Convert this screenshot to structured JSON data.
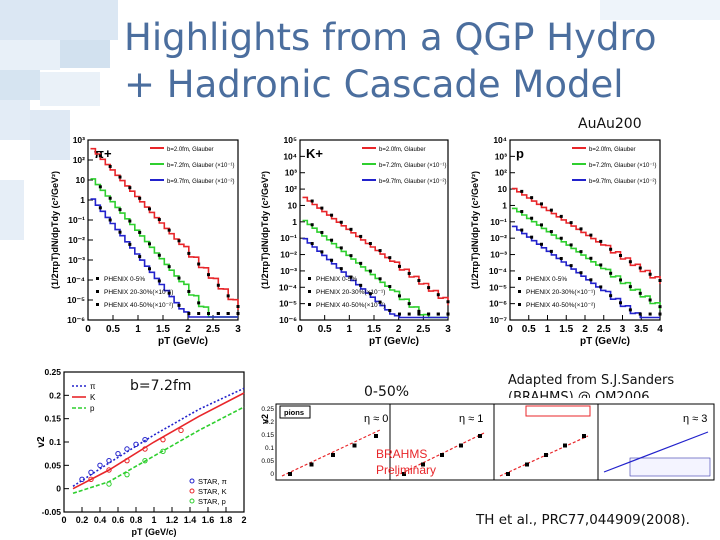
{
  "slide": {
    "title_line1": "Highlights from a QGP Hydro",
    "title_line2": "+ Hadronic Cascade Model",
    "system": "AuAu200",
    "impact_label": "b=7.2fm",
    "centrality_label": "0-50%",
    "adapted_line1": "Adapted from S.J.Sanders",
    "adapted_line2": "(BRAHMS) @ QM2006",
    "citation": "TH et al., PRC77,044909(2008).",
    "colors": {
      "title": "#4b6e9e",
      "red": "#e8262a",
      "green": "#2fcf2f",
      "blue": "#2222cc"
    }
  },
  "chart_data": [
    {
      "type": "line",
      "particle": "π+",
      "xlabel": "pT (GeV/c)",
      "ylabel": "(1/2πpT)dN/dpTdy (c²/GeV²)",
      "xlim": [
        0,
        3
      ],
      "ylog_range": [
        -6,
        3
      ],
      "xticks": [
        "0",
        "0.5",
        "1",
        "1.5",
        "2",
        "2.5",
        "3"
      ],
      "yticks": [
        "10⁻⁶",
        "10⁻⁵",
        "10⁻⁴",
        "10⁻³",
        "10⁻²",
        "10⁻¹",
        "1",
        "10",
        "10²",
        "10³"
      ],
      "model_legend": [
        "b=2.0fm, Glauber",
        "b=7.2fm, Glauber (×10⁻¹)",
        "b=9.7fm, Glauber (×10⁻²)"
      ],
      "data_legend": [
        "PHENIX 0-5%",
        "PHENIX 20-30%(×10⁻¹)",
        "PHENIX 40-50%(×10⁻²)"
      ],
      "series": [
        {
          "name": "b=2.0fm",
          "color": "red",
          "start": 2.7,
          "slope": 2.7
        },
        {
          "name": "b=7.2fm",
          "color": "green",
          "start": 1.2,
          "slope": 2.9
        },
        {
          "name": "b=9.7fm",
          "color": "blue",
          "start": 0.2,
          "slope": 3.1
        }
      ]
    },
    {
      "type": "line",
      "particle": "K+",
      "xlabel": "pT (GeV/c)",
      "ylabel": "(1/2πpT)dN/dpTdy (c²/GeV²)",
      "xlim": [
        0,
        3
      ],
      "ylog_range": [
        -6,
        5
      ],
      "xticks": [
        "0",
        "0.5",
        "1",
        "1.5",
        "2",
        "2.5",
        "3"
      ],
      "yticks": [
        "10⁻⁶",
        "10⁻⁵",
        "10⁻⁴",
        "10⁻³",
        "10⁻²",
        "10⁻¹",
        "1",
        "10",
        "10²",
        "10³",
        "10⁴",
        "10⁵"
      ],
      "model_legend": [
        "b=2.0fm, Glauber",
        "b=7.2fm, Glauber (×10⁻¹)",
        "b=9.7fm, Glauber (×10⁻²)"
      ],
      "data_legend": [
        "PHENIX 0-5%",
        "PHENIX 20-30%(×10⁻¹)",
        "PHENIX 40-50%(×10⁻²)"
      ],
      "series": [
        {
          "name": "b=2.0fm",
          "color": "red",
          "start": 1.6,
          "slope": 2.2
        },
        {
          "name": "b=7.2fm",
          "color": "green",
          "start": 0.2,
          "slope": 2.4
        },
        {
          "name": "b=9.7fm",
          "color": "blue",
          "start": -0.9,
          "slope": 2.6
        }
      ]
    },
    {
      "type": "line",
      "particle": "p",
      "xlabel": "pT (GeV/c)",
      "ylabel": "(1/2πpT)dN/dpTdy (c²/GeV²)",
      "xlim": [
        0,
        4
      ],
      "ylog_range": [
        -7,
        4
      ],
      "xticks": [
        "0",
        "0.5",
        "1",
        "1.5",
        "2",
        "2.5",
        "3",
        "3.5",
        "4"
      ],
      "yticks": [
        "10⁻⁷",
        "10⁻⁶",
        "10⁻⁵",
        "10⁻⁴",
        "10⁻³",
        "10⁻²",
        "10⁻¹",
        "1",
        "10",
        "10²",
        "10³",
        "10⁴"
      ],
      "model_legend": [
        "b=2.0fm, Glauber",
        "b=7.2fm, Glauber (×10⁻¹)",
        "b=9.7fm, Glauber (×10⁻²)"
      ],
      "data_legend": [
        "PHENIX 0-5%",
        "PHENIX 20-30%(×10⁻¹)",
        "PHENIX 40-50%(×10⁻²)"
      ],
      "series": [
        {
          "name": "b=2.0fm",
          "color": "red",
          "start": 1.1,
          "slope": 1.45
        },
        {
          "name": "b=7.2fm",
          "color": "green",
          "start": -0.1,
          "slope": 1.55
        },
        {
          "name": "b=9.7fm",
          "color": "blue",
          "start": -1.2,
          "slope": 1.65
        }
      ]
    },
    {
      "type": "scatter",
      "xlabel": "pT (GeV/c)",
      "ylabel": "v2",
      "xlim": [
        0,
        2
      ],
      "ylim": [
        -0.05,
        0.25
      ],
      "xticks": [
        "0",
        "0.2",
        "0.4",
        "0.6",
        "0.8",
        "1",
        "1.2",
        "1.4",
        "1.6",
        "1.8",
        "2"
      ],
      "yticks": [
        "-0.05",
        "0",
        "0.05",
        "0.1",
        "0.15",
        "0.2",
        "0.25"
      ],
      "legend_model": [
        "π",
        "K",
        "p"
      ],
      "legend_data": [
        "STAR, π",
        "STAR, K",
        "STAR, p"
      ],
      "model": {
        "pi": {
          "x": [
            0.1,
            0.5,
            1.0,
            1.5,
            2.0
          ],
          "y": [
            0.005,
            0.055,
            0.115,
            0.17,
            0.215
          ]
        },
        "K": {
          "x": [
            0.1,
            0.5,
            1.0,
            1.5,
            2.0
          ],
          "y": [
            0.0,
            0.04,
            0.1,
            0.155,
            0.205
          ]
        },
        "p": {
          "x": [
            0.1,
            0.5,
            1.0,
            1.5,
            2.0
          ],
          "y": [
            -0.01,
            0.015,
            0.07,
            0.125,
            0.175
          ]
        }
      },
      "data": {
        "pi": {
          "x": [
            0.2,
            0.3,
            0.4,
            0.5,
            0.6,
            0.7,
            0.8,
            0.9
          ],
          "y": [
            0.02,
            0.035,
            0.05,
            0.06,
            0.075,
            0.085,
            0.095,
            0.105
          ]
        },
        "K": {
          "x": [
            0.3,
            0.5,
            0.7,
            0.9,
            1.1,
            1.3
          ],
          "y": [
            0.02,
            0.04,
            0.06,
            0.085,
            0.105,
            0.125
          ]
        },
        "p": {
          "x": [
            0.5,
            0.7,
            0.9,
            1.1
          ],
          "y": [
            0.01,
            0.03,
            0.06,
            0.08
          ]
        }
      }
    },
    {
      "type": "scatter",
      "name": "BRAHMS v2",
      "ylabel": "v2",
      "ylim": [
        0,
        0.25
      ],
      "yticks": [
        "0",
        "0.05",
        "0.1",
        "0.15",
        "0.2",
        "0.25"
      ],
      "legend_box": "pions",
      "eta_labels": [
        "η ≈ 0",
        "η ≈ 1",
        "η ≈ 3"
      ],
      "preliminary_line1": "BRAHMS",
      "preliminary_line2": "Preliminary"
    }
  ]
}
